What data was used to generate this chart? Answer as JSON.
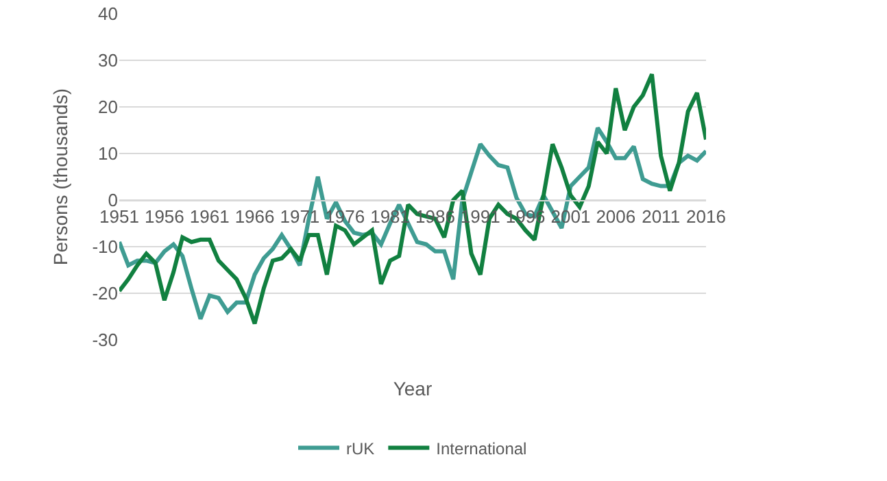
{
  "chart_data": {
    "type": "line",
    "xlabel": "Year",
    "ylabel": "Persons (thousands)",
    "x": [
      1951,
      1952,
      1953,
      1954,
      1955,
      1956,
      1957,
      1958,
      1959,
      1960,
      1961,
      1962,
      1963,
      1964,
      1965,
      1966,
      1967,
      1968,
      1969,
      1970,
      1971,
      1972,
      1973,
      1974,
      1975,
      1976,
      1977,
      1978,
      1979,
      1980,
      1981,
      1982,
      1983,
      1984,
      1985,
      1986,
      1987,
      1988,
      1989,
      1990,
      1991,
      1992,
      1993,
      1994,
      1995,
      1996,
      1997,
      1998,
      1999,
      2000,
      2001,
      2002,
      2003,
      2004,
      2005,
      2006,
      2007,
      2008,
      2009,
      2010,
      2011,
      2012,
      2013,
      2014,
      2015,
      2016
    ],
    "series": [
      {
        "name": "rUK",
        "color": "#3f9c92",
        "values": [
          -9,
          -14,
          -13,
          -13,
          -13.5,
          -11,
          -9.5,
          -12,
          -19,
          -25.5,
          -20.5,
          -21,
          -24,
          -22,
          -22,
          -16,
          -12.5,
          -10.5,
          -7.5,
          -10.5,
          -14,
          -4,
          5,
          -4,
          -0.5,
          -4.5,
          -7,
          -7.5,
          -7,
          -9.5,
          -5,
          -1,
          -5,
          -9,
          -9.5,
          -11,
          -11,
          -17,
          0,
          6,
          12,
          9.5,
          7.5,
          7,
          0.5,
          -3,
          -3.5,
          1,
          -2.5,
          -6,
          3,
          5,
          7,
          15.5,
          12.5,
          9,
          9,
          11.5,
          4.5,
          3.5,
          3,
          3,
          8,
          9.5,
          8.5,
          10.5
        ]
      },
      {
        "name": "International",
        "color": "#118040",
        "values": [
          -19.5,
          -17,
          -14,
          -11.5,
          -13.5,
          -21.5,
          -15.5,
          -8,
          -9,
          -8.5,
          -8.5,
          -13,
          -15,
          -17,
          -21,
          -26.5,
          -19,
          -13,
          -12.5,
          -10.5,
          -13,
          -7.5,
          -7.5,
          -16,
          -5.5,
          -6.5,
          -9.5,
          -8,
          -6.5,
          -18,
          -13,
          -12,
          -1,
          -3,
          -3.5,
          -4,
          -8,
          0,
          2,
          -11.5,
          -16,
          -4,
          -1,
          -3,
          -4,
          -6.5,
          -8.5,
          1,
          12,
          7,
          1,
          -1.5,
          3,
          12.5,
          10,
          24,
          15,
          20,
          22.5,
          27,
          9.5,
          2,
          8,
          19,
          23,
          13
        ]
      }
    ],
    "xlim": [
      1951,
      2016
    ],
    "xticks": [
      1951,
      1956,
      1961,
      1966,
      1971,
      1976,
      1981,
      1986,
      1991,
      1996,
      2001,
      2006,
      2011,
      2016
    ],
    "ylim": [
      -30,
      40
    ],
    "yticks": [
      -30,
      -20,
      -10,
      0,
      10,
      20,
      30,
      40
    ],
    "grid": "y",
    "legend": "bottom",
    "marker": "none",
    "line_style": "solid"
  }
}
